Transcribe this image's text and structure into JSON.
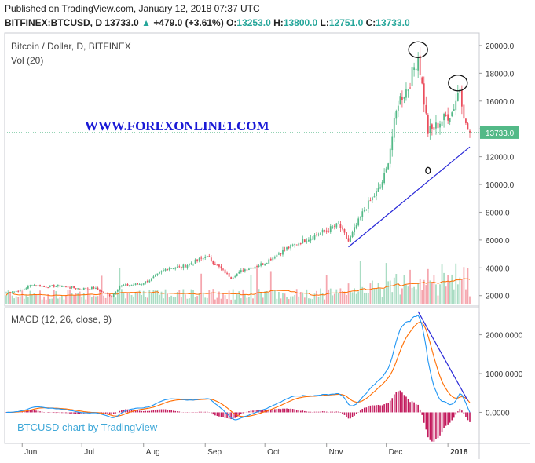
{
  "header": {
    "published": "Published on TradingView.com, January 12, 2018 07:37 UTC",
    "symbol": "BITFINEX:BTCUSD, D",
    "last": "13733.0",
    "change_arrow": "▲",
    "change": "+479.0 (+3.61%)",
    "o_label": "O:",
    "o_value": "13253.0",
    "h_label": "H:",
    "h_value": "13800.0",
    "l_label": "L:",
    "l_value": "12751.0",
    "c_label": "C:",
    "c_value": "13733.0"
  },
  "colors": {
    "up": "#53b987",
    "down": "#eb4d5c",
    "vol_up": "#a9dcc3",
    "vol_down": "#f5a6ae",
    "macd_line": "#2196f3",
    "signal_line": "#ff6d00",
    "histogram": "#c2185b",
    "trendline": "#2929d8",
    "watermark": "#1a1ad6",
    "last_price_bg": "#53b987",
    "branding": "#3fa8d8"
  },
  "chart_data": [
    {
      "type": "candlestick",
      "title": "Bitcoin / Dollar, D, BITFINEX",
      "volume_label": "Vol (20)",
      "watermark": "WWW.FOREXONLINE1.COM",
      "last_price_label": "13733.0",
      "y_ticks": [
        "20000.0",
        "18000.0",
        "16000.0",
        "14000.0",
        "12000.0",
        "10000.0",
        "8000.0",
        "6000.0",
        "4000.0",
        "2000.0"
      ],
      "y_tick_values": [
        20000,
        18000,
        16000,
        14000,
        12000,
        10000,
        8000,
        6000,
        4000,
        2000
      ],
      "ylim": [
        1250,
        20900
      ],
      "x_ticks": [
        "Jun",
        "Jul",
        "Aug",
        "Sep",
        "Oct",
        "Nov",
        "Dec",
        "2018"
      ],
      "x_tick_dates": [
        "2017-06-01",
        "2017-07-01",
        "2017-08-01",
        "2017-09-01",
        "2017-10-01",
        "2017-11-01",
        "2017-12-01",
        "2018-01-01"
      ],
      "date_range": [
        "2017-05-24",
        "2018-01-12"
      ],
      "close_anchors": [
        [
          "2017-05-24",
          2200
        ],
        [
          "2017-06-01",
          2400
        ],
        [
          "2017-06-06",
          2800
        ],
        [
          "2017-06-12",
          2650
        ],
        [
          "2017-06-20",
          2700
        ],
        [
          "2017-06-30",
          2500
        ],
        [
          "2017-07-07",
          2550
        ],
        [
          "2017-07-16",
          1950
        ],
        [
          "2017-07-20",
          2700
        ],
        [
          "2017-07-31",
          2850
        ],
        [
          "2017-08-05",
          3200
        ],
        [
          "2017-08-13",
          4000
        ],
        [
          "2017-08-20",
          4050
        ],
        [
          "2017-08-31",
          4700
        ],
        [
          "2017-09-01",
          4900
        ],
        [
          "2017-09-14",
          3300
        ],
        [
          "2017-09-20",
          3850
        ],
        [
          "2017-09-30",
          4300
        ],
        [
          "2017-10-12",
          5400
        ],
        [
          "2017-10-21",
          6000
        ],
        [
          "2017-11-01",
          6700
        ],
        [
          "2017-11-07",
          7100
        ],
        [
          "2017-11-12",
          5900
        ],
        [
          "2017-11-20",
          8200
        ],
        [
          "2017-11-28",
          9800
        ],
        [
          "2017-12-01",
          11000
        ],
        [
          "2017-12-07",
          16000
        ],
        [
          "2017-12-12",
          17000
        ],
        [
          "2017-12-17",
          19300
        ],
        [
          "2017-12-22",
          13800
        ],
        [
          "2017-12-25",
          14000
        ],
        [
          "2017-12-28",
          14500
        ],
        [
          "2018-01-03",
          15200
        ],
        [
          "2018-01-07",
          17000
        ],
        [
          "2018-01-10",
          14200
        ],
        [
          "2018-01-12",
          13733
        ]
      ],
      "annotations": [
        {
          "type": "trendline",
          "from": [
            "2017-11-12",
            5500
          ],
          "to": [
            "2018-01-12",
            12700
          ]
        },
        {
          "type": "circle",
          "at": [
            "2017-12-17",
            19700
          ]
        },
        {
          "type": "circle",
          "at": [
            "2018-01-06",
            17300
          ]
        },
        {
          "type": "circle",
          "at": [
            "2017-12-22",
            11000
          ]
        }
      ]
    },
    {
      "type": "line",
      "title": "MACD (12, 26, close, 9)",
      "y_ticks": [
        "2000.0000",
        "1000.0000",
        "0.0000"
      ],
      "y_tick_values": [
        2000,
        1000,
        0
      ],
      "ylim": [
        -800,
        2700
      ],
      "series": [
        {
          "name": "MACD",
          "color": "#2196f3"
        },
        {
          "name": "Signal",
          "color": "#ff6d00"
        },
        {
          "name": "Histogram",
          "color": "#c2185b"
        }
      ],
      "annotations": [
        {
          "type": "trendline",
          "from": [
            "2017-12-17",
            2600
          ],
          "to": [
            "2018-01-11",
            300
          ]
        }
      ]
    }
  ],
  "branding": "BTCUSD chart by TradingView"
}
